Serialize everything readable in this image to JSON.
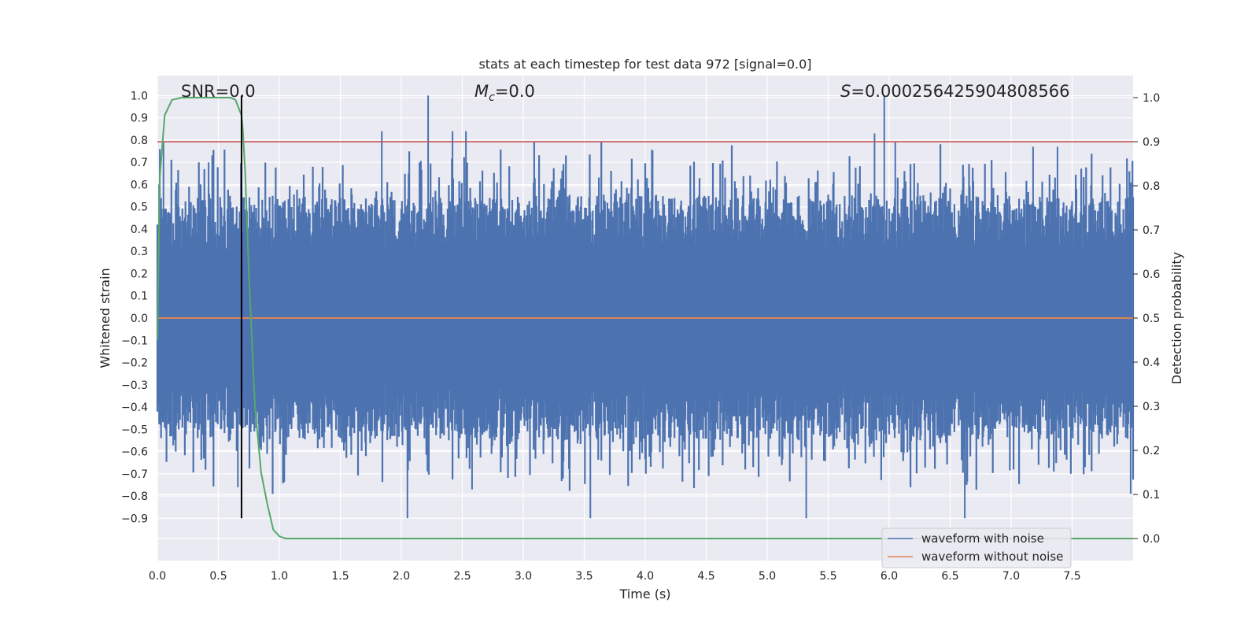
{
  "colors": {
    "background": "#ffffff",
    "plot_bg": "#eaeaf2",
    "grid": "#ffffff",
    "noisy": "#4c72b0",
    "clean": "#dd8452",
    "probability": "#55a868",
    "threshold": "#c44e52",
    "marker": "#000000",
    "text": "#262626"
  },
  "chart_data": {
    "type": "line",
    "title": "stats at each timestep for test data 972 [signal=0.0]",
    "xlabel": "Time (s)",
    "ylabel_left": "Whitened strain",
    "ylabel_right": "Detection probability",
    "xlim": [
      0.0,
      8.0
    ],
    "ylim_left": [
      -1.09,
      1.09
    ],
    "ylim_right": [
      -0.05,
      1.05
    ],
    "xticks": [
      "0.0",
      "0.5",
      "1.0",
      "1.5",
      "2.0",
      "2.5",
      "3.0",
      "3.5",
      "4.0",
      "4.5",
      "5.0",
      "5.5",
      "6.0",
      "6.5",
      "7.0",
      "7.5"
    ],
    "yticks_left": [
      "1.0",
      "0.9",
      "0.8",
      "0.7",
      "0.6",
      "0.5",
      "0.4",
      "0.3",
      "0.2",
      "0.1",
      "0.0",
      "−0.1",
      "−0.2",
      "−0.3",
      "−0.4",
      "−0.5",
      "−0.6",
      "−0.7",
      "−0.8",
      "−0.9"
    ],
    "yticks_right": [
      "1.0",
      "0.9",
      "0.8",
      "0.7",
      "0.6",
      "0.5",
      "0.4",
      "0.3",
      "0.2",
      "0.1",
      "0.0"
    ],
    "grid": true,
    "legend_position": "lower-right",
    "annotations": {
      "snr": "SNR=0.0",
      "mc_symbol": "M",
      "mc_sub": "c",
      "mc_value": "=0.0",
      "s_symbol": "S",
      "s_value": "=0.000256425904808566"
    },
    "noise_envelope": {
      "time_step": 0.005,
      "core_amplitude": 0.55,
      "max_amplitude": 1.0,
      "min_amplitude": -1.0
    },
    "series": [
      {
        "name": "waveform with noise",
        "axis": "left",
        "spikes": [
          [
            0.02,
            0.76
          ],
          [
            0.05,
            0.79
          ],
          [
            0.42,
            0.7
          ],
          [
            0.66,
            -0.76
          ],
          [
            0.69,
            0.63
          ],
          [
            1.84,
            0.84
          ],
          [
            2.05,
            -0.9
          ],
          [
            2.22,
            1.0
          ],
          [
            2.42,
            0.84
          ],
          [
            2.53,
            0.84
          ],
          [
            2.58,
            -0.77
          ],
          [
            3.55,
            -0.9
          ],
          [
            3.57,
            0.3
          ],
          [
            5.32,
            -0.9
          ],
          [
            5.88,
            0.83
          ],
          [
            5.96,
            1.0
          ],
          [
            6.05,
            0.79
          ],
          [
            6.62,
            -0.9
          ],
          [
            7.18,
            0.77
          ],
          [
            7.38,
            0.77
          ],
          [
            7.98,
            -0.79
          ]
        ]
      },
      {
        "name": "waveform without noise",
        "axis": "left",
        "x": [
          0.0,
          8.0
        ],
        "y": [
          0.0,
          0.0
        ]
      },
      {
        "axis": "right",
        "x": [
          0.0,
          0.02,
          0.06,
          0.12,
          0.2,
          0.3,
          0.4,
          0.5,
          0.55,
          0.6,
          0.64,
          0.69,
          0.7,
          0.72,
          0.75,
          0.8,
          0.85,
          0.9,
          0.95,
          1.0,
          1.05,
          1.1,
          2.0,
          3.0,
          4.0,
          5.0,
          6.0,
          7.0,
          8.0
        ],
        "y": [
          0.45,
          0.82,
          0.96,
          0.995,
          1.0,
          1.0,
          1.0,
          1.0,
          1.0,
          1.0,
          0.995,
          0.96,
          0.93,
          0.83,
          0.6,
          0.3,
          0.15,
          0.08,
          0.02,
          0.005,
          0.0,
          0.0,
          0.0,
          0.0,
          0.0,
          0.0,
          0.0,
          0.0,
          0.0
        ]
      }
    ],
    "threshold": {
      "axis": "right",
      "value": 0.9
    },
    "marker_line": {
      "x": 0.69,
      "axis_left_y": [
        -0.9,
        1.0
      ]
    }
  }
}
